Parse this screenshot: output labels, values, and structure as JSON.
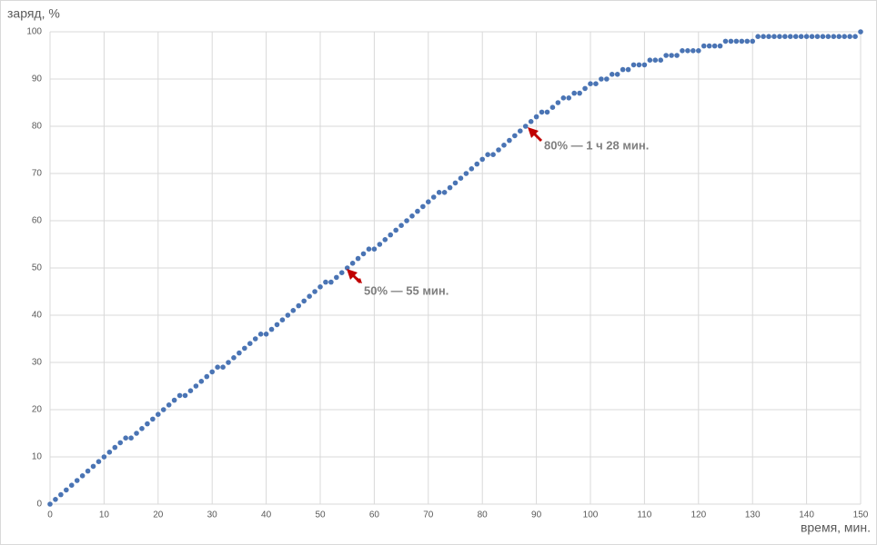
{
  "chart_data": {
    "type": "scatter",
    "y_label": "заряд, %",
    "x_label": "время, мин.",
    "annotations": [
      "50% — 55 мин.",
      "80% — 1 ч 28 мин."
    ],
    "x": [
      0,
      1,
      2,
      3,
      4,
      5,
      6,
      7,
      8,
      9,
      10,
      11,
      12,
      13,
      14,
      15,
      16,
      17,
      18,
      19,
      20,
      21,
      22,
      23,
      24,
      25,
      26,
      27,
      28,
      29,
      30,
      31,
      32,
      33,
      34,
      35,
      36,
      37,
      38,
      39,
      40,
      41,
      42,
      43,
      44,
      45,
      46,
      47,
      48,
      49,
      50,
      51,
      52,
      53,
      54,
      55,
      56,
      57,
      58,
      59,
      60,
      61,
      62,
      63,
      64,
      65,
      66,
      67,
      68,
      69,
      70,
      71,
      72,
      73,
      74,
      75,
      76,
      77,
      78,
      79,
      80,
      81,
      82,
      83,
      84,
      85,
      86,
      87,
      88,
      89,
      90,
      91,
      92,
      93,
      94,
      95,
      96,
      97,
      98,
      99,
      100,
      101,
      102,
      103,
      104,
      105,
      106,
      107,
      108,
      109,
      110,
      111,
      112,
      113,
      114,
      115,
      116,
      117,
      118,
      119,
      120,
      121,
      122,
      123,
      124,
      125,
      126,
      127,
      128,
      129,
      130,
      131,
      132,
      133,
      134,
      135,
      136,
      137,
      138,
      139,
      140,
      141,
      142,
      143,
      144,
      145,
      146,
      147,
      148,
      149,
      150
    ],
    "series": [
      {
        "color": "#4a74b4",
        "values": [
          0,
          1,
          2,
          3,
          4,
          5,
          6,
          7,
          8,
          9,
          10,
          11,
          12,
          13,
          14,
          14,
          15,
          16,
          17,
          18,
          19,
          20,
          21,
          22,
          23,
          23,
          24,
          25,
          26,
          27,
          28,
          29,
          29,
          30,
          31,
          32,
          33,
          34,
          35,
          36,
          36,
          37,
          38,
          39,
          40,
          41,
          42,
          43,
          44,
          45,
          46,
          47,
          47,
          48,
          49,
          50,
          51,
          52,
          53,
          54,
          54,
          55,
          56,
          57,
          58,
          59,
          60,
          61,
          62,
          63,
          64,
          65,
          66,
          66,
          67,
          68,
          69,
          70,
          71,
          72,
          73,
          74,
          74,
          75,
          76,
          77,
          78,
          79,
          80,
          81,
          82,
          83,
          83,
          84,
          85,
          86,
          86,
          87,
          87,
          88,
          89,
          89,
          90,
          90,
          91,
          91,
          92,
          92,
          93,
          93,
          93,
          94,
          94,
          94,
          95,
          95,
          95,
          96,
          96,
          96,
          96,
          97,
          97,
          97,
          97,
          98,
          98,
          98,
          98,
          98,
          98,
          99,
          99,
          99,
          99,
          99,
          99,
          99,
          99,
          99,
          99,
          99,
          99,
          99,
          99,
          99,
          99,
          99,
          99,
          99,
          100
        ]
      }
    ],
    "xlim": [
      0,
      150
    ],
    "ylim": [
      0,
      100
    ],
    "xticks": [
      0,
      10,
      20,
      30,
      40,
      50,
      60,
      70,
      80,
      90,
      100,
      110,
      120,
      130,
      140,
      150
    ],
    "yticks": [
      0,
      10,
      20,
      30,
      40,
      50,
      60,
      70,
      80,
      90,
      100
    ],
    "grid": true
  }
}
